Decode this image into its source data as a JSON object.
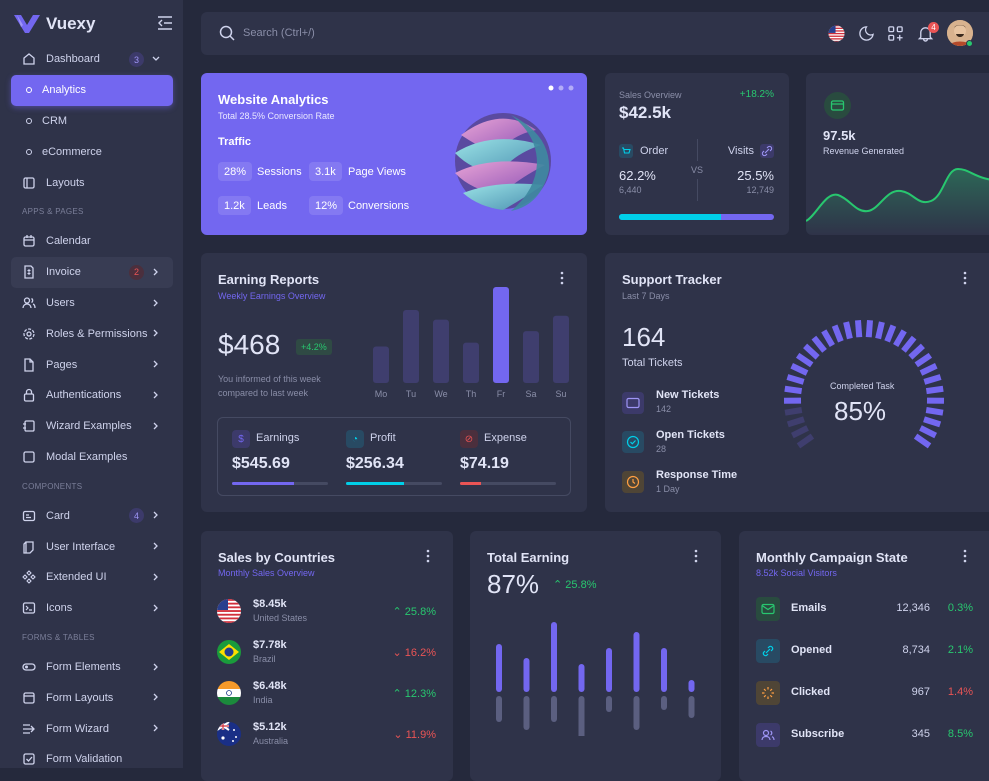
{
  "brand": {
    "name": "Vuexy"
  },
  "sidebar": {
    "dashboard": {
      "label": "Dashboard",
      "badge": "3"
    },
    "sub_items": [
      "Analytics",
      "CRM",
      "eCommerce"
    ],
    "layouts": "Layouts",
    "section_apps": "APPS & PAGES",
    "calendar": "Calendar",
    "invoice": {
      "label": "Invoice",
      "badge": "2"
    },
    "users": "Users",
    "roles": "Roles & Permissions",
    "pages": "Pages",
    "auth": "Authentications",
    "wizard": "Wizard Examples",
    "modal": "Modal Examples",
    "section_components": "COMPONENTS",
    "card": {
      "label": "Card",
      "badge": "4"
    },
    "ui": "User Interface",
    "ext": "Extended UI",
    "icons": "Icons",
    "section_forms": "FORMS & TABLES",
    "form_elements": "Form Elements",
    "form_layouts": "Form Layouts",
    "form_wizard": "Form Wizard",
    "form_validation": "Form Validation"
  },
  "topbar": {
    "search_placeholder": "Search (Ctrl+/)",
    "notifications": "4"
  },
  "website_analytics": {
    "title": "Website Analytics",
    "subtitle": "Total 28.5% Conversion Rate",
    "section": "Traffic",
    "stats": [
      {
        "value": "28%",
        "label": "Sessions"
      },
      {
        "value": "3.1k",
        "label": "Page Views"
      },
      {
        "value": "1.2k",
        "label": "Leads"
      },
      {
        "value": "12%",
        "label": "Conversions"
      }
    ]
  },
  "sales_overview": {
    "label": "Sales Overview",
    "change": "+18.2%",
    "amount": "$42.5k",
    "order": {
      "label": "Order",
      "pct": "62.2%",
      "count": "6,440"
    },
    "vs": "VS",
    "visits": {
      "label": "Visits",
      "pct": "25.5%",
      "count": "12,749"
    },
    "progress": 0.66
  },
  "revenue": {
    "value": "97.5k",
    "label": "Revenue Generated"
  },
  "earning_reports": {
    "title": "Earning Reports",
    "subtitle": "Weekly Earnings Overview",
    "amount": "$468",
    "change": "+4.2%",
    "note1": "You informed of this week",
    "note2": "compared to last week",
    "days": [
      "Mo",
      "Tu",
      "We",
      "Th",
      "Fr",
      "Sa",
      "Su"
    ],
    "bars": [
      38,
      76,
      66,
      42,
      100,
      54,
      70
    ],
    "summary": [
      {
        "label": "Earnings",
        "value": "$545.69",
        "fill": 0.65,
        "color": "#7367f0"
      },
      {
        "label": "Profit",
        "value": "$256.34",
        "fill": 0.6,
        "color": "#00cfe8"
      },
      {
        "label": "Expense",
        "value": "$74.19",
        "fill": 0.22,
        "color": "#ea5455"
      }
    ]
  },
  "support_tracker": {
    "title": "Support Tracker",
    "subtitle": "Last 7 Days",
    "total": "164",
    "total_label": "Total Tickets",
    "items": [
      {
        "label": "New Tickets",
        "value": "142"
      },
      {
        "label": "Open Tickets",
        "value": "28"
      },
      {
        "label": "Response Time",
        "value": "1 Day"
      }
    ],
    "gauge_label": "Completed Task",
    "gauge_value": "85%",
    "gauge_fill": 0.85
  },
  "sales_countries": {
    "title": "Sales by Countries",
    "subtitle": "Monthly Sales Overview",
    "rows": [
      {
        "amount": "$8.45k",
        "country": "United States",
        "change": "25.8%",
        "up": true
      },
      {
        "amount": "$7.78k",
        "country": "Brazil",
        "change": "16.2%",
        "up": false
      },
      {
        "amount": "$6.48k",
        "country": "India",
        "change": "12.3%",
        "up": true
      },
      {
        "amount": "$5.12k",
        "country": "Australia",
        "change": "11.9%",
        "up": false
      }
    ]
  },
  "total_earning": {
    "title": "Total Earning",
    "value": "87%",
    "change": "25.8%",
    "bars_up": [
      48,
      34,
      70,
      28,
      44,
      60,
      44,
      12
    ],
    "bars_down": [
      26,
      34,
      26,
      44,
      16,
      34,
      14,
      22
    ]
  },
  "campaign": {
    "title": "Monthly Campaign State",
    "subtitle": "8.52k Social Visitors",
    "rows": [
      {
        "label": "Emails",
        "value": "12,346",
        "pct": "0.3%",
        "up": true
      },
      {
        "label": "Opened",
        "value": "8,734",
        "pct": "2.1%",
        "up": true
      },
      {
        "label": "Clicked",
        "value": "967",
        "pct": "1.4%",
        "up": false
      },
      {
        "label": "Subscribe",
        "value": "345",
        "pct": "8.5%",
        "up": true
      }
    ]
  }
}
